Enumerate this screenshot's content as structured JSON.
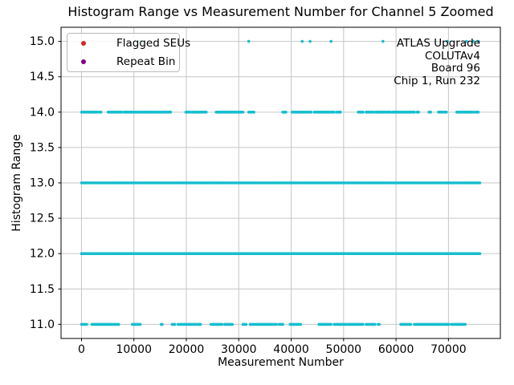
{
  "figure": {
    "title": "Histogram Range vs Measurement Number for Channel 5 Zoomed",
    "xlabel": "Measurement Number",
    "ylabel": "Histogram Range"
  },
  "legend": {
    "items": [
      {
        "label": "Flagged SEUs",
        "color": "#d62728"
      },
      {
        "label": "Repeat Bin",
        "color": "#800080"
      }
    ]
  },
  "annotation": {
    "lines": [
      "ATLAS Upgrade",
      "COLUTAv4",
      "Board 96",
      "Chip 1, Run 232"
    ]
  },
  "chart_data": {
    "type": "scatter",
    "title": "Histogram Range vs Measurement Number for Channel 5 Zoomed",
    "xlabel": "Measurement Number",
    "ylabel": "Histogram Range",
    "xlim": [
      -3900,
      79900
    ],
    "ylim": [
      10.8,
      15.2
    ],
    "xticks": [
      0,
      10000,
      20000,
      30000,
      40000,
      50000,
      60000,
      70000
    ],
    "yticks": [
      11.0,
      11.5,
      12.0,
      12.5,
      13.0,
      13.5,
      14.0,
      14.5,
      15.0
    ],
    "grid": true,
    "grid_color": "#c6c6c6",
    "legend_position": "upper left",
    "point_color": "#17becf",
    "series": [
      {
        "name": "Flagged SEUs",
        "color": "#d62728",
        "points": []
      },
      {
        "name": "Repeat Bin",
        "color": "#800080",
        "points": []
      }
    ],
    "bands": [
      {
        "y": 15,
        "segments": [],
        "points": [
          11200,
          31900,
          42100,
          43600,
          47600,
          57500,
          69800,
          73400,
          74700,
          75700
        ]
      },
      {
        "y": 14,
        "segments": [
          [
            0,
            3100
          ],
          [
            3450,
            3700
          ],
          [
            5100,
            7700
          ],
          [
            8150,
            9700
          ],
          [
            10000,
            15500
          ],
          [
            15800,
            17000
          ],
          [
            19900,
            20700
          ],
          [
            21100,
            21900
          ],
          [
            22200,
            23800
          ],
          [
            25700,
            29300
          ],
          [
            29600,
            30800
          ],
          [
            31900,
            32900
          ],
          [
            38400,
            39000
          ],
          [
            40200,
            43800
          ],
          [
            44400,
            47400
          ],
          [
            47600,
            48200
          ],
          [
            48700,
            49400
          ],
          [
            52800,
            53700
          ],
          [
            54300,
            55600
          ],
          [
            56000,
            59000
          ],
          [
            59400,
            61700
          ],
          [
            62000,
            63500
          ],
          [
            64000,
            64300
          ],
          [
            66300,
            66600
          ],
          [
            68100,
            69600
          ],
          [
            71600,
            74700
          ],
          [
            75100,
            75700
          ]
        ],
        "points": []
      },
      {
        "y": 13,
        "segments": [
          [
            0,
            76000
          ]
        ],
        "points": []
      },
      {
        "y": 12,
        "segments": [
          [
            0,
            76000
          ]
        ],
        "points": []
      },
      {
        "y": 11,
        "segments": [
          [
            0,
            1000
          ],
          [
            2000,
            7100
          ],
          [
            9700,
            11200
          ],
          [
            15200,
            15400
          ],
          [
            17300,
            17800
          ],
          [
            18400,
            21900
          ],
          [
            22200,
            22700
          ],
          [
            24700,
            26800
          ],
          [
            27300,
            28800
          ],
          [
            30800,
            31400
          ],
          [
            32200,
            36000
          ],
          [
            36100,
            37200
          ],
          [
            37700,
            38400
          ],
          [
            39800,
            41800
          ],
          [
            45300,
            47600
          ],
          [
            48200,
            50700
          ],
          [
            51000,
            53700
          ],
          [
            54300,
            56000
          ],
          [
            56600,
            56800
          ],
          [
            60900,
            62800
          ],
          [
            63500,
            68100
          ],
          [
            68300,
            70100
          ],
          [
            70600,
            73200
          ]
        ],
        "points": []
      }
    ]
  }
}
